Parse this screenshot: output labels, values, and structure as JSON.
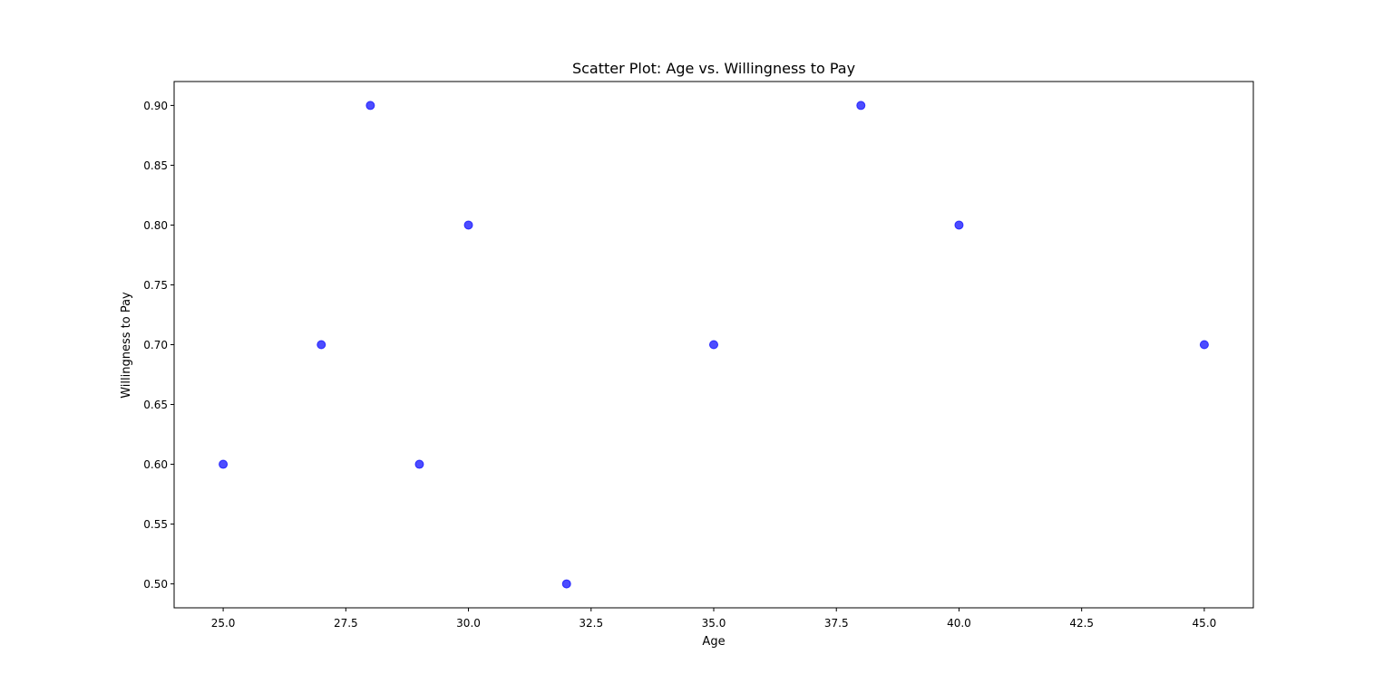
{
  "chart_data": {
    "type": "scatter",
    "title": "Scatter Plot: Age vs. Willingness to Pay",
    "xlabel": "Age",
    "ylabel": "Willingness to Pay",
    "xlim": [
      24.0,
      46.0
    ],
    "ylim": [
      0.48,
      0.92
    ],
    "xticks": [
      "25.0",
      "27.5",
      "30.0",
      "32.5",
      "35.0",
      "37.5",
      "40.0",
      "42.5",
      "45.0"
    ],
    "yticks": [
      "0.50",
      "0.55",
      "0.60",
      "0.65",
      "0.70",
      "0.75",
      "0.80",
      "0.85",
      "0.90"
    ],
    "grid": false,
    "marker_color": "#0000ff",
    "marker_opacity": 0.7,
    "points": [
      {
        "x": 25,
        "y": 0.6
      },
      {
        "x": 27,
        "y": 0.7
      },
      {
        "x": 28,
        "y": 0.9
      },
      {
        "x": 29,
        "y": 0.6
      },
      {
        "x": 30,
        "y": 0.8
      },
      {
        "x": 32,
        "y": 0.5
      },
      {
        "x": 35,
        "y": 0.7
      },
      {
        "x": 38,
        "y": 0.9
      },
      {
        "x": 40,
        "y": 0.8
      },
      {
        "x": 45,
        "y": 0.7
      }
    ]
  }
}
